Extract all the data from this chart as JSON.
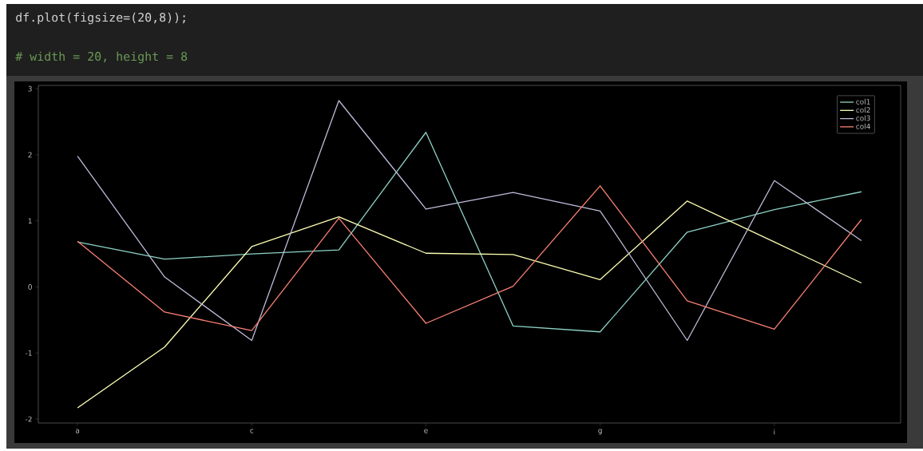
{
  "chart_data": {
    "type": "line",
    "categories": [
      "a",
      null,
      "c",
      null,
      "e",
      null,
      "g",
      null,
      "i",
      null
    ],
    "series": [
      {
        "name": "col1",
        "color": "#8dd3c7",
        "values": [
          0.68,
          0.42,
          0.5,
          0.56,
          2.34,
          -0.59,
          -0.68,
          0.83,
          1.17,
          1.44
        ]
      },
      {
        "name": "col2",
        "color": "#feffb3",
        "values": [
          -1.83,
          -0.91,
          0.61,
          1.06,
          0.51,
          0.49,
          0.11,
          1.3,
          0.68,
          0.06
        ]
      },
      {
        "name": "col3",
        "color": "#bfbbd9",
        "values": [
          1.98,
          0.15,
          -0.81,
          2.82,
          1.18,
          1.43,
          1.15,
          -0.81,
          1.61,
          0.7
        ]
      },
      {
        "name": "col4",
        "color": "#fa8174",
        "values": [
          0.69,
          -0.38,
          -0.66,
          1.04,
          -0.55,
          0.01,
          1.53,
          -0.21,
          -0.64,
          1.02
        ]
      }
    ],
    "ylim": [
      -2.06,
      3.05
    ],
    "yticks": [
      -2,
      -1,
      0,
      1,
      2,
      3
    ],
    "legend": "top right",
    "annotations": [
      "df.plot(figsize=(20,8));",
      "# width = 20, height = 8"
    ]
  }
}
